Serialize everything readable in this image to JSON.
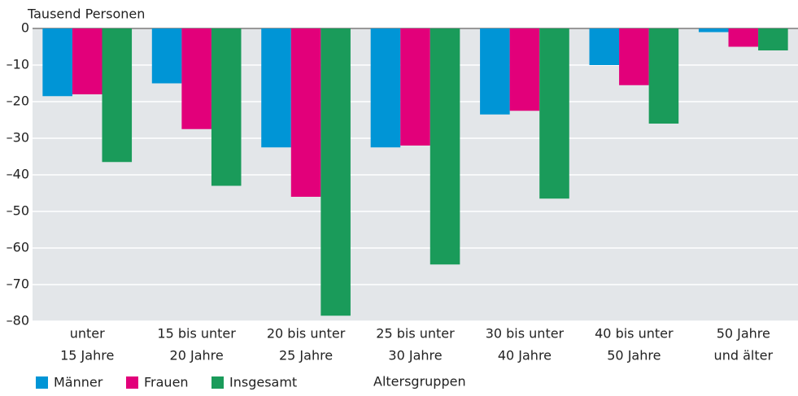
{
  "chart_data": {
    "type": "bar",
    "ylabel": "Tausend Personen",
    "xlabel": "Altersgruppen",
    "categories": [
      [
        "unter",
        "15 Jahre"
      ],
      [
        "15 bis unter",
        "20 Jahre"
      ],
      [
        "20 bis unter",
        "25 Jahre"
      ],
      [
        "25 bis unter",
        "30 Jahre"
      ],
      [
        "30 bis unter",
        "40 Jahre"
      ],
      [
        "40 bis unter",
        "50 Jahre"
      ],
      [
        "50 Jahre",
        "und älter"
      ]
    ],
    "series": [
      {
        "name": "Männer",
        "color": "#0095d6",
        "values": [
          -18.5,
          -15,
          -32.5,
          -32.5,
          -23.5,
          -10,
          -1
        ]
      },
      {
        "name": "Frauen",
        "color": "#e2007a",
        "values": [
          -18,
          -27.5,
          -46,
          -32,
          -22.5,
          -15.5,
          -5
        ]
      },
      {
        "name": "Insgesamt",
        "color": "#1a9b5a",
        "values": [
          -36.5,
          -43,
          -78.5,
          -64.5,
          -46.5,
          -26,
          -6
        ]
      }
    ],
    "ylim": [
      -80,
      0
    ],
    "yticks": [
      0,
      {
        "value": -10,
        "label": "–10"
      },
      {
        "value": -20,
        "label": "–20"
      },
      {
        "value": -30,
        "label": "–30"
      },
      {
        "value": -40,
        "label": "–40"
      },
      {
        "value": -50,
        "label": "–50"
      },
      {
        "value": -60,
        "label": "–60"
      },
      {
        "value": -70,
        "label": "–70"
      },
      {
        "value": -80,
        "label": "–80"
      }
    ],
    "grid": true,
    "legend": "bottom"
  }
}
